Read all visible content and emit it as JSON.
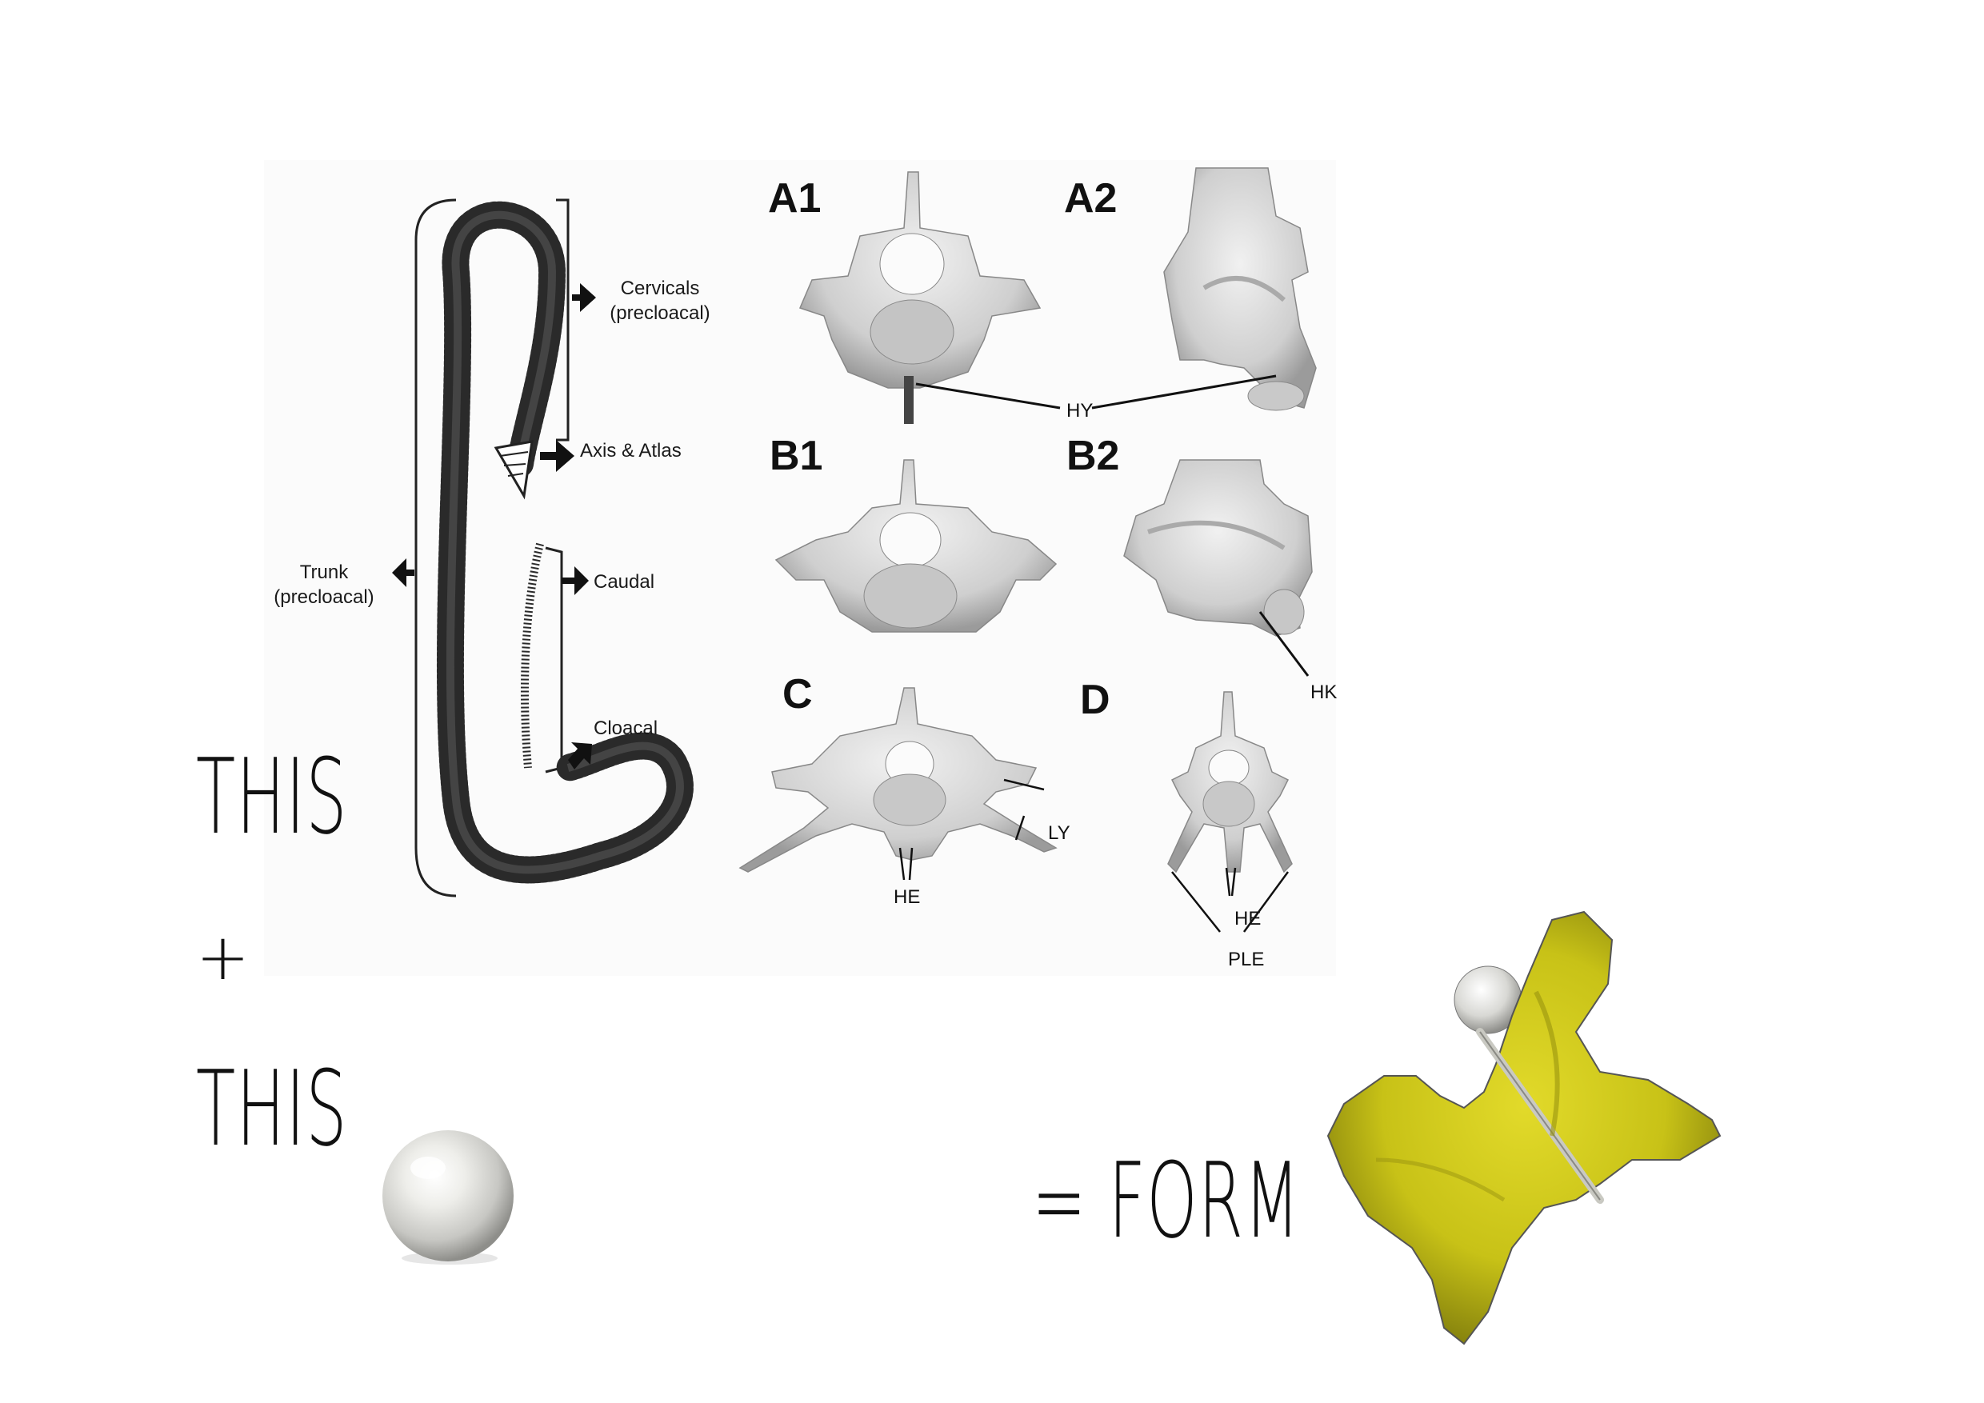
{
  "figure": {
    "skeleton_labels": {
      "cervicals": "Cervicals",
      "cervicals_sub": "(precloacal)",
      "axis_atlas": "Axis & Atlas",
      "trunk": "Trunk",
      "trunk_sub": "(precloacal)",
      "caudal": "Caudal",
      "cloacal": "Cloacal"
    },
    "panels": {
      "a1": "A1",
      "a2": "A2",
      "b1": "B1",
      "b2": "B2",
      "c": "C",
      "d": "D"
    },
    "annotations": {
      "hy": "HY",
      "hk": "HK",
      "ly": "LY",
      "he_c": "HE",
      "he_d": "HE",
      "ple": "PLE"
    }
  },
  "equation": {
    "this_1": "THIS",
    "plus": "+",
    "this_2": "THIS",
    "equals_form": "= FORM"
  },
  "colors": {
    "bone": "#d6d6d6",
    "bone_shadow": "#9a9a9a",
    "pearl": "#e9e9e6",
    "gold": "#c8c217",
    "gold_dark": "#7d7a0c"
  }
}
